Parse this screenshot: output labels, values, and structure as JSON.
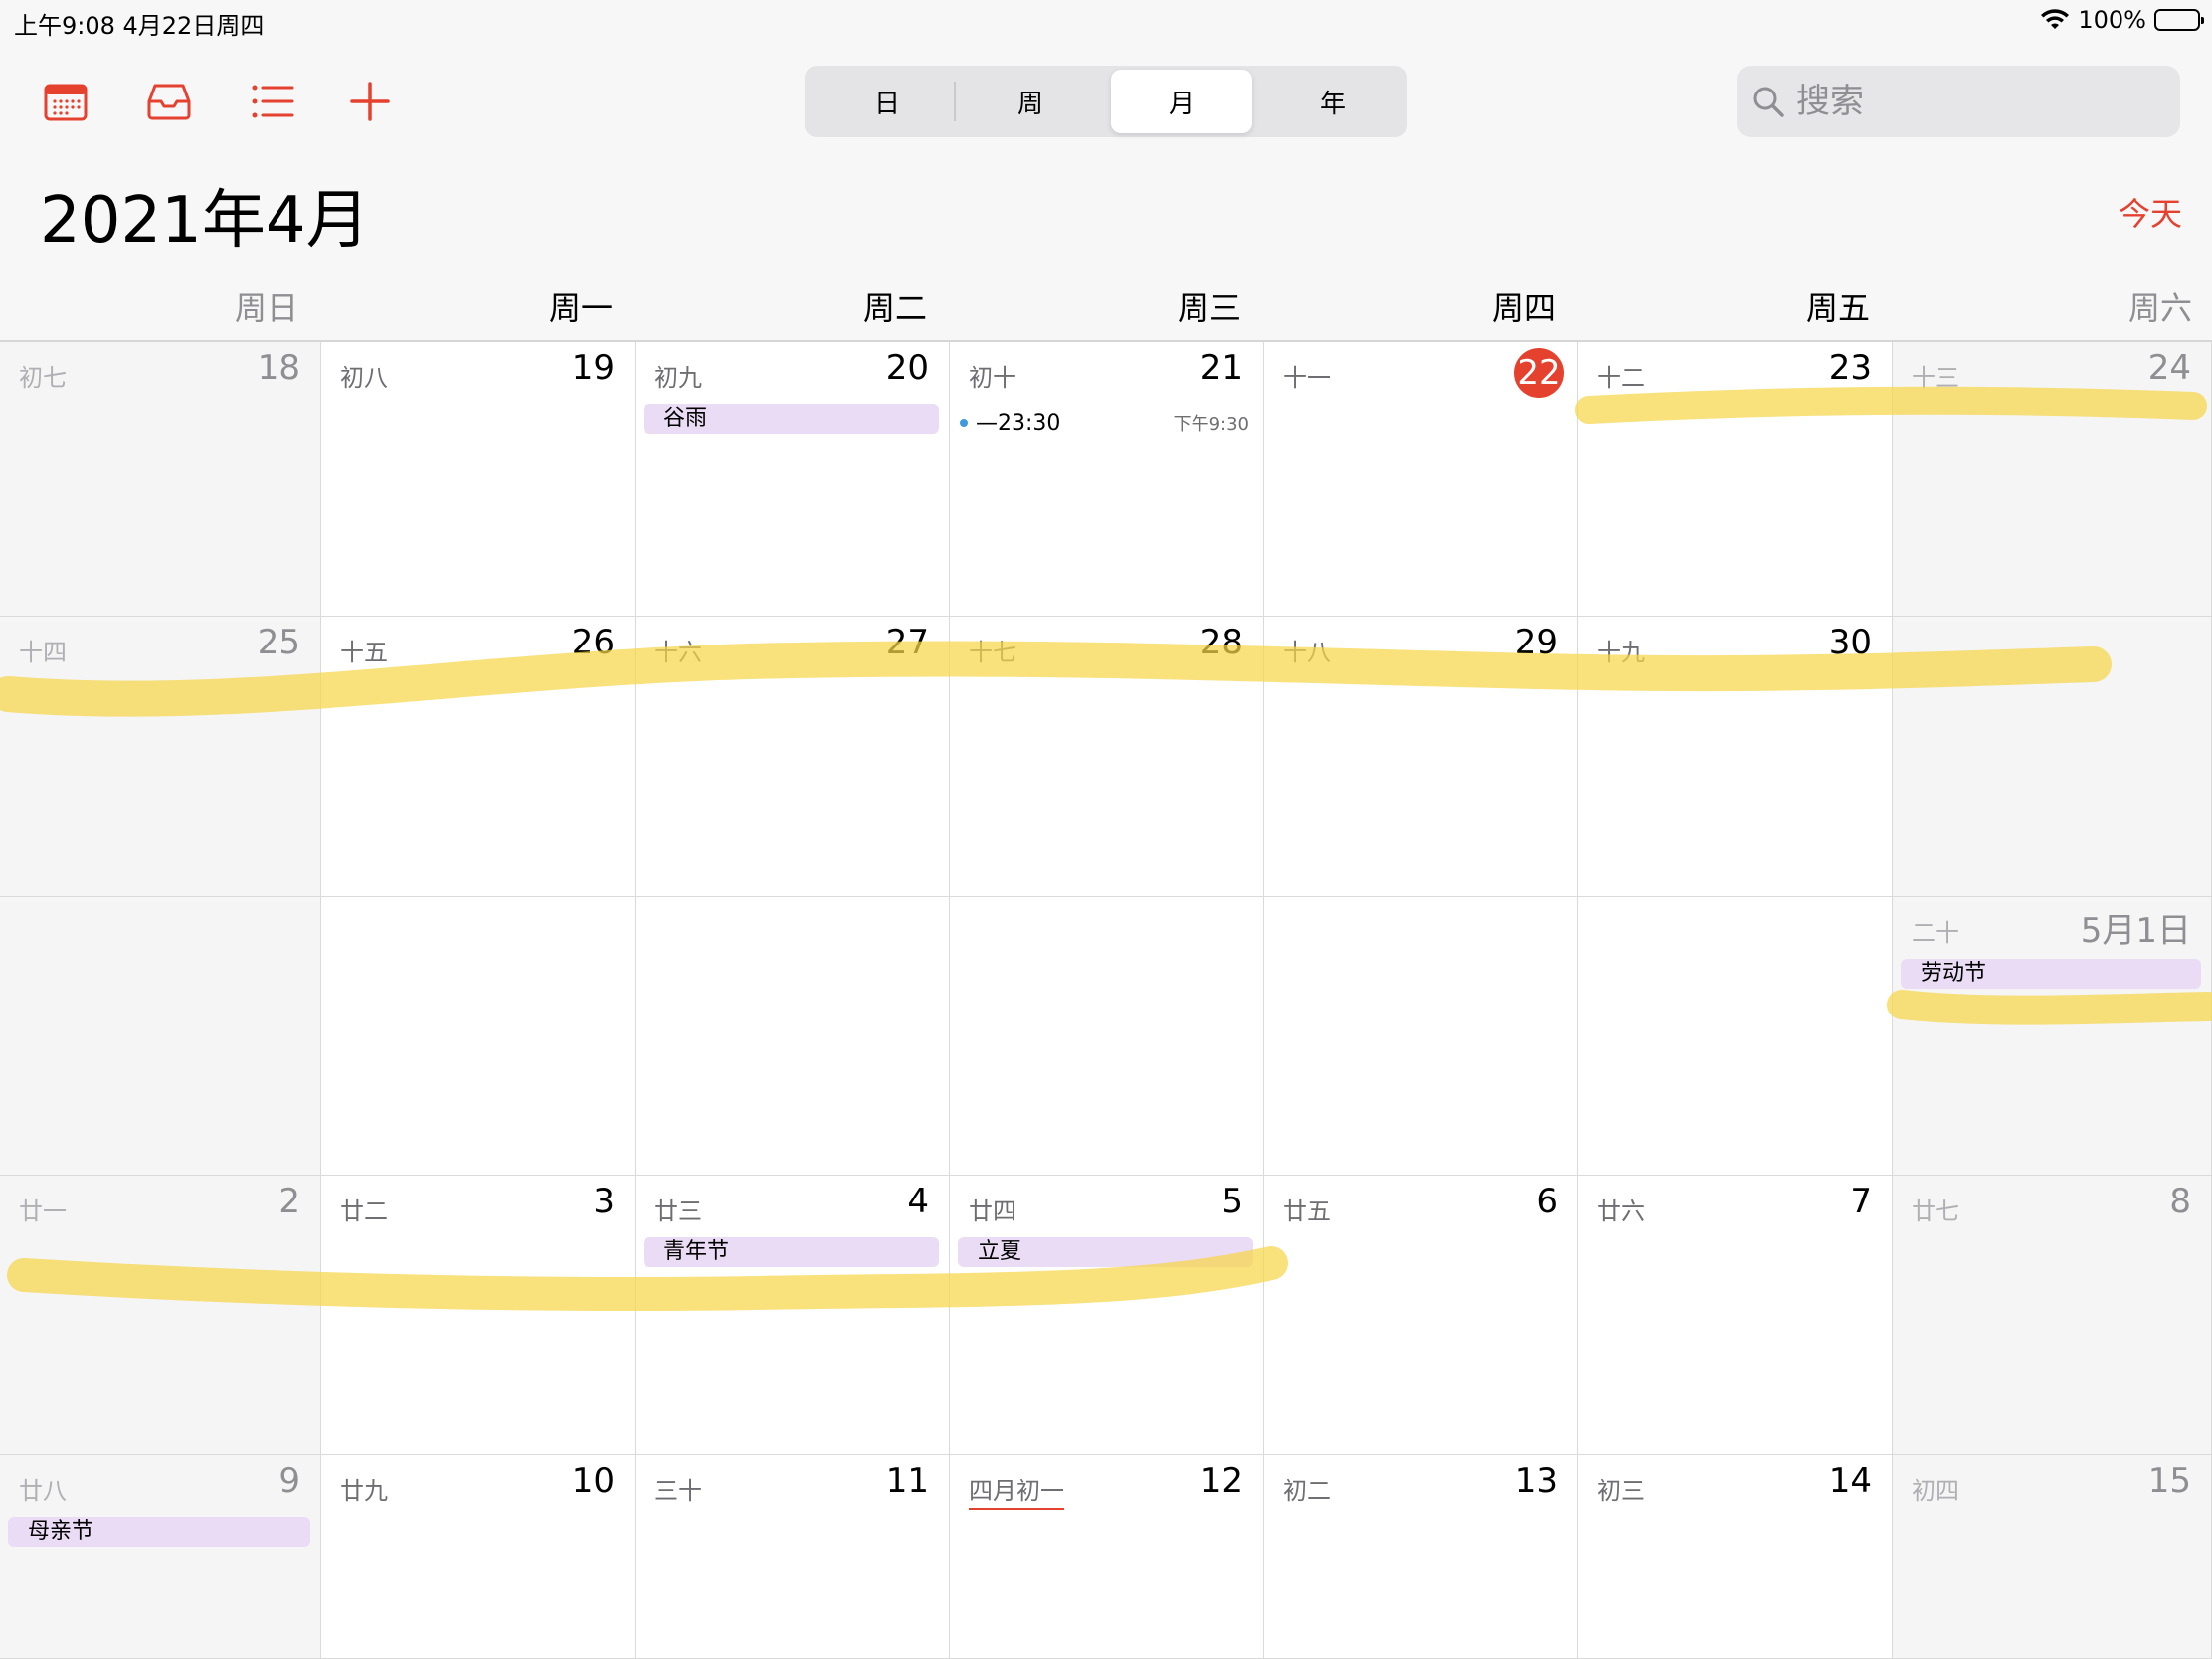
{
  "status_bar": {
    "time_date": "上午9:08   4月22日周四",
    "battery": "100%"
  },
  "toolbar": {
    "icons": [
      "calendar-icon",
      "inbox-icon",
      "list-icon",
      "plus-icon"
    ]
  },
  "view_switcher": {
    "day": "日",
    "week": "周",
    "month": "月",
    "year": "年",
    "selected": "月"
  },
  "search": {
    "placeholder": "搜索"
  },
  "header": {
    "month_title": "2021年4月",
    "today_button": "今天"
  },
  "weekdays": [
    "周日",
    "周一",
    "周二",
    "周三",
    "周四",
    "周五",
    "周六"
  ],
  "weeks": [
    [
      {
        "lunar": "初七",
        "day": "18"
      },
      {
        "lunar": "初八",
        "day": "19"
      },
      {
        "lunar": "初九",
        "day": "20",
        "event": "谷雨"
      },
      {
        "lunar": "初十",
        "day": "21",
        "timed_event": {
          "label": "—23:30",
          "time": "下午9:30"
        }
      },
      {
        "lunar": "十一",
        "day": "22",
        "today": true
      },
      {
        "lunar": "十二",
        "day": "23"
      },
      {
        "lunar": "十三",
        "day": "24"
      }
    ],
    [
      {
        "lunar": "十四",
        "day": "25"
      },
      {
        "lunar": "十五",
        "day": "26"
      },
      {
        "lunar": "十六",
        "day": "27"
      },
      {
        "lunar": "十七",
        "day": "28"
      },
      {
        "lunar": "十八",
        "day": "29"
      },
      {
        "lunar": "十九",
        "day": "30"
      },
      {
        "lunar": "",
        "day": ""
      }
    ],
    [
      {
        "lunar": "",
        "day": ""
      },
      {
        "lunar": "",
        "day": ""
      },
      {
        "lunar": "",
        "day": ""
      },
      {
        "lunar": "",
        "day": ""
      },
      {
        "lunar": "",
        "day": ""
      },
      {
        "lunar": "",
        "day": ""
      },
      {
        "lunar": "二十",
        "day": "5月1日",
        "event": "劳动节"
      }
    ],
    [
      {
        "lunar": "廿一",
        "day": "2"
      },
      {
        "lunar": "廿二",
        "day": "3"
      },
      {
        "lunar": "廿三",
        "day": "4",
        "event": "青年节"
      },
      {
        "lunar": "廿四",
        "day": "5",
        "event": "立夏"
      },
      {
        "lunar": "廿五",
        "day": "6"
      },
      {
        "lunar": "廿六",
        "day": "7"
      },
      {
        "lunar": "廿七",
        "day": "8"
      }
    ],
    [
      {
        "lunar": "廿八",
        "day": "9",
        "event": "母亲节"
      },
      {
        "lunar": "廿九",
        "day": "10"
      },
      {
        "lunar": "三十",
        "day": "11"
      },
      {
        "lunar": "四月初一",
        "day": "12",
        "lunar_underline": true
      },
      {
        "lunar": "初二",
        "day": "13"
      },
      {
        "lunar": "初三",
        "day": "14"
      },
      {
        "lunar": "初四",
        "day": "15"
      }
    ]
  ],
  "colors": {
    "accent": "#e5412f",
    "event_bg": "#ebdcf5",
    "highlighter": "#f7d54a",
    "event_dot": "#3b9bdc"
  }
}
